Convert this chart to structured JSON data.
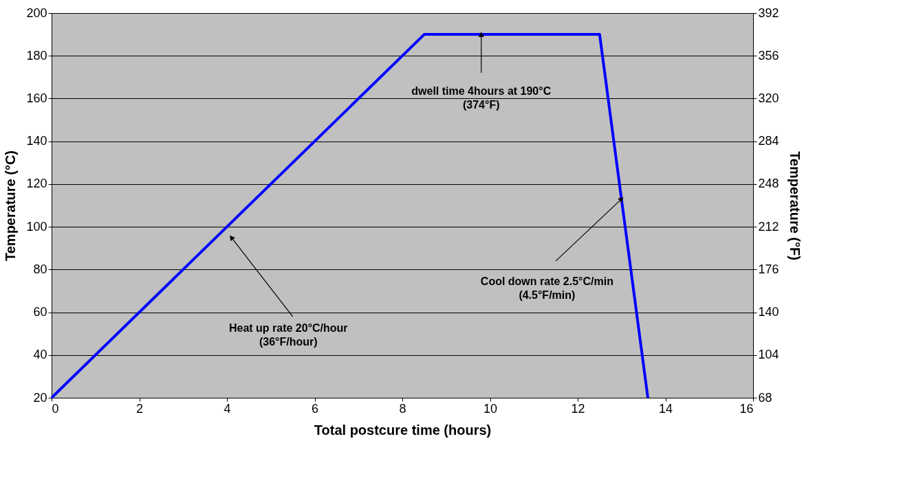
{
  "chart_data": {
    "type": "line",
    "xlabel": "Total postcure time (hours)",
    "ylabel": "Temperature (°C)",
    "y2label": "Temperature (°F)",
    "x": [
      0,
      8.5,
      12.5,
      13.6
    ],
    "series": [
      {
        "color": "#0000ff",
        "values": [
          20,
          190,
          190,
          20
        ]
      }
    ],
    "xlim": [
      0,
      16
    ],
    "xticks": [
      0,
      2,
      4,
      6,
      8,
      10,
      12,
      14,
      16
    ],
    "ylim": [
      20,
      200
    ],
    "yticks": [
      20,
      40,
      60,
      80,
      100,
      120,
      140,
      160,
      180,
      200
    ],
    "y2lim": [
      68,
      392
    ],
    "y2ticks": [
      68,
      104,
      140,
      176,
      212,
      248,
      284,
      320,
      356,
      392
    ],
    "grid": "y",
    "marker": "none",
    "line_style": "solid",
    "annotations": [
      {
        "text": "dwell time 4hours at 190°C\n(374°F)",
        "x": 9.8,
        "y": 190
      },
      {
        "text": "Heat up rate 20°C/hour\n(36°F/hour)",
        "x": 4.1,
        "y": 95
      },
      {
        "text": "Cool down rate 2.5°C/min\n(4.5°F/min)",
        "x": 13,
        "y": 113
      }
    ]
  }
}
